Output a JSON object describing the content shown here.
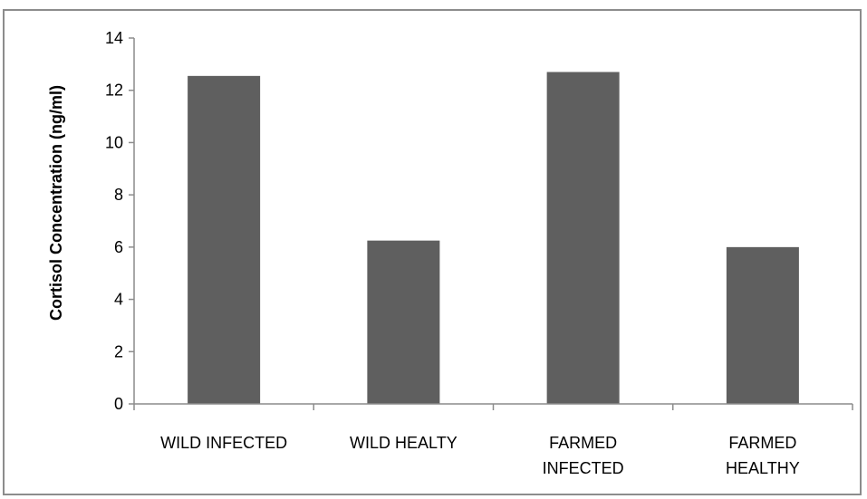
{
  "chart_data": {
    "type": "bar",
    "categories": [
      [
        "WILD INFECTED"
      ],
      [
        "WILD HEALTY"
      ],
      [
        "FARMED",
        "INFECTED"
      ],
      [
        "FARMED",
        "HEALTHY"
      ]
    ],
    "values": [
      12.55,
      6.25,
      12.7,
      6.0
    ],
    "title": "",
    "xlabel": "",
    "ylabel": "Cortisol Concentration (ng/ml)",
    "ylim": [
      0,
      14
    ],
    "yticks": [
      0,
      2,
      4,
      6,
      8,
      10,
      12,
      14
    ],
    "grid": false,
    "legend": "none",
    "colors": {
      "bar": "#5f5f5f",
      "axis": "#8c8c8c",
      "frame": "#8c8c8c"
    }
  }
}
